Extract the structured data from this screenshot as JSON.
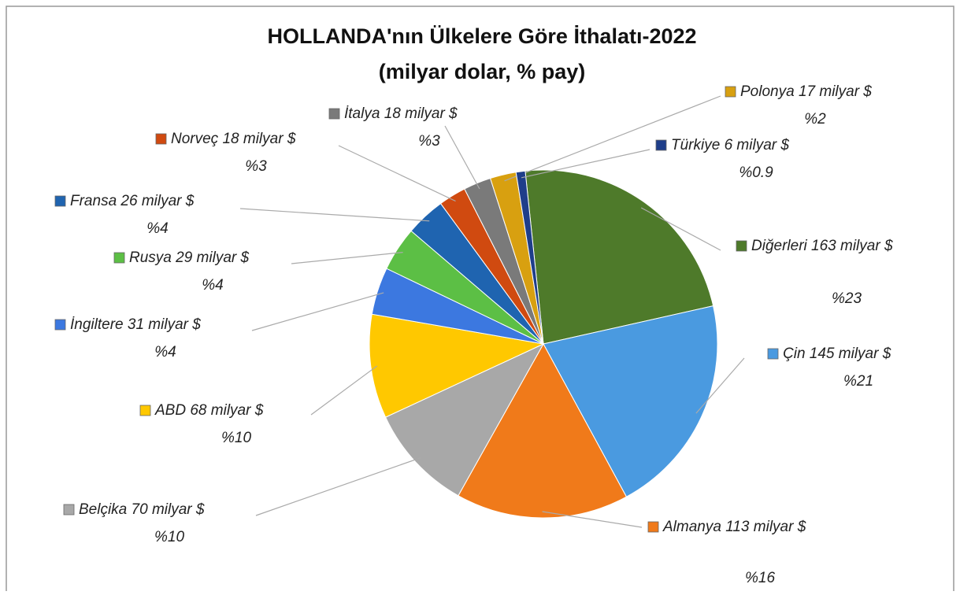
{
  "chart_data": {
    "type": "pie",
    "title": "HOLLANDA'nın Ülkelere Göre İthalatı-2022",
    "subtitle": "(milyar dolar, % pay)",
    "categories": [
      "Diğerleri",
      "Çin",
      "Almanya",
      "Belçika",
      "ABD",
      "İngiltere",
      "Rusya",
      "Fransa",
      "Norveç",
      "İtalya",
      "Polonya",
      "Türkiye"
    ],
    "values": [
      163,
      145,
      113,
      70,
      68,
      31,
      29,
      26,
      18,
      18,
      17,
      6
    ],
    "value_labels": [
      "163 milyar $",
      "145 milyar $",
      "113 milyar $",
      "70 milyar $",
      "68 milyar $",
      "31 milyar $",
      "29 milyar $",
      "26 milyar $",
      "18 milyar $",
      "18 milyar $",
      "17 milyar $",
      "6 milyar $"
    ],
    "shares": [
      23,
      21,
      16,
      10,
      10,
      4,
      4,
      4,
      3,
      3,
      2,
      0.9
    ],
    "share_labels": [
      "%23",
      "%21",
      "%16",
      "%10",
      "%10",
      "%4",
      "%4",
      "%4",
      "%3",
      "%3",
      "%2",
      "%0.9"
    ],
    "colors": [
      "#4e7a2a",
      "#4a9ae0",
      "#f07a1a",
      "#a8a8a8",
      "#ffc800",
      "#3c78e0",
      "#5cbf45",
      "#1f64b0",
      "#d04a10",
      "#7a7a7a",
      "#d8a010",
      "#1f3e8a"
    ]
  }
}
